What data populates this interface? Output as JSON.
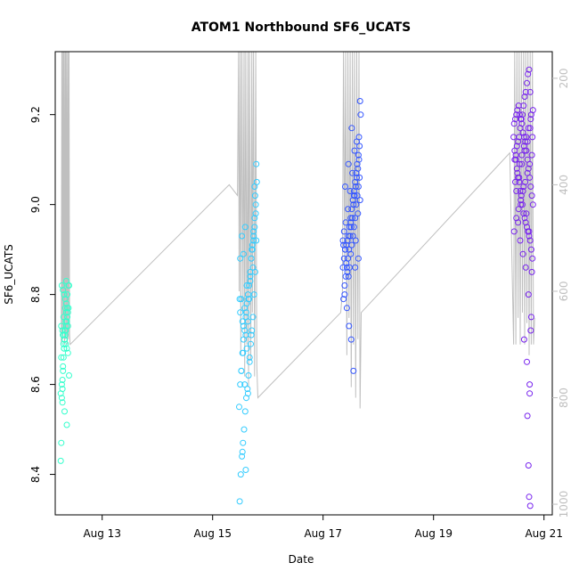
{
  "chart_data": {
    "type": "scatter",
    "title": "ATOM1 Northbound SF6_UCATS",
    "xlabel": "Date",
    "ylabel": "SF6_UCATS",
    "x_ticks": [
      "Aug 13",
      "Aug 15",
      "Aug 17",
      "Aug 19",
      "Aug 21"
    ],
    "xlim_days": [
      12.15,
      21.15
    ],
    "ylim": [
      8.31,
      9.34
    ],
    "y_ticks": [
      8.4,
      8.6,
      8.8,
      9.0,
      9.2
    ],
    "right_axis": {
      "label": "",
      "ticks": [
        200,
        400,
        600,
        800,
        1000
      ],
      "range": [
        1020,
        150
      ],
      "inverted": true,
      "color": "#bfbfbf"
    },
    "grid": false,
    "legend": "none",
    "colors": {
      "series1": "#33ffcc",
      "series2": "#33ccff",
      "series3": "#3355ff",
      "series4": "#7722ee",
      "pressure": "#bfbfbf"
    },
    "series": [
      {
        "x": [
          12.25,
          12.26,
          12.27,
          12.28,
          12.28,
          12.29,
          12.3,
          12.31,
          12.3,
          12.32,
          12.33,
          12.34,
          12.35,
          12.36,
          12.37,
          12.38,
          12.39,
          12.4,
          12.27,
          12.29,
          12.31,
          12.33,
          12.35,
          12.37,
          12.26,
          12.28,
          12.3,
          12.32,
          12.34,
          12.36,
          12.38,
          12.4,
          12.25,
          12.27,
          12.29,
          12.31,
          12.33,
          12.35,
          12.37,
          12.39,
          12.28,
          12.32,
          12.36,
          12.3,
          12.34,
          12.38,
          12.26,
          12.35,
          12.29,
          12.33
        ],
        "y": [
          8.43,
          8.47,
          8.57,
          8.59,
          8.61,
          8.64,
          8.66,
          8.68,
          8.69,
          8.7,
          8.71,
          8.72,
          8.73,
          8.74,
          8.75,
          8.76,
          8.77,
          8.82,
          8.82,
          8.81,
          8.8,
          8.79,
          8.78,
          8.77,
          8.73,
          8.72,
          8.71,
          8.7,
          8.69,
          8.68,
          8.67,
          8.62,
          8.58,
          8.6,
          8.63,
          8.68,
          8.72,
          8.76,
          8.8,
          8.82,
          8.56,
          8.54,
          8.51,
          8.75,
          8.74,
          8.73,
          8.66,
          8.83,
          8.71,
          8.77
        ]
      },
      {
        "x": [
          15.48,
          15.5,
          15.52,
          15.54,
          15.56,
          15.58,
          15.6,
          15.62,
          15.64,
          15.66,
          15.68,
          15.7,
          15.72,
          15.74,
          15.76,
          15.78,
          15.8,
          15.49,
          15.51,
          15.53,
          15.55,
          15.57,
          15.59,
          15.61,
          15.63,
          15.65,
          15.67,
          15.69,
          15.71,
          15.73,
          15.75,
          15.77,
          15.79,
          15.5,
          15.52,
          15.54,
          15.56,
          15.58,
          15.6,
          15.62,
          15.64,
          15.66,
          15.68,
          15.7,
          15.72,
          15.74,
          15.76,
          15.78,
          15.5,
          15.53,
          15.56,
          15.59,
          15.62,
          15.65,
          15.68,
          15.71,
          15.74,
          15.77,
          15.49,
          15.55,
          15.61,
          15.67,
          15.73,
          15.79,
          15.52,
          15.58,
          15.64,
          15.7,
          15.76,
          15.54,
          15.6
        ],
        "y": [
          8.55,
          8.6,
          8.63,
          8.67,
          8.7,
          8.72,
          8.75,
          8.78,
          8.8,
          8.82,
          8.85,
          8.88,
          8.9,
          8.92,
          8.95,
          8.98,
          9.05,
          8.34,
          8.4,
          8.44,
          8.47,
          8.5,
          8.54,
          8.57,
          8.59,
          8.62,
          8.66,
          8.69,
          8.72,
          8.75,
          8.8,
          8.85,
          8.92,
          8.76,
          8.79,
          8.74,
          8.73,
          8.77,
          8.71,
          8.68,
          8.74,
          8.79,
          8.83,
          8.88,
          8.91,
          8.93,
          8.97,
          9.0,
          8.88,
          8.93,
          8.89,
          8.95,
          8.82,
          8.79,
          8.84,
          8.9,
          8.94,
          9.02,
          8.79,
          8.67,
          8.76,
          8.65,
          8.86,
          9.09,
          8.63,
          8.6,
          8.58,
          8.71,
          9.04,
          8.45,
          8.41
        ]
      },
      {
        "x": [
          17.36,
          17.38,
          17.4,
          17.42,
          17.44,
          17.46,
          17.48,
          17.5,
          17.52,
          17.54,
          17.56,
          17.58,
          17.6,
          17.62,
          17.64,
          17.66,
          17.68,
          17.37,
          17.39,
          17.41,
          17.43,
          17.45,
          17.47,
          17.49,
          17.51,
          17.53,
          17.55,
          17.57,
          17.59,
          17.61,
          17.63,
          17.65,
          17.67,
          17.36,
          17.38,
          17.4,
          17.42,
          17.44,
          17.46,
          17.48,
          17.5,
          17.52,
          17.54,
          17.56,
          17.58,
          17.6,
          17.62,
          17.64,
          17.66,
          17.37,
          17.41,
          17.45,
          17.49,
          17.53,
          17.57,
          17.61,
          17.65,
          17.39,
          17.43,
          17.47,
          17.51,
          17.55,
          17.59,
          17.63,
          17.67,
          17.4,
          17.46,
          17.52,
          17.58,
          17.64,
          17.5,
          17.56
        ],
        "y": [
          8.86,
          8.88,
          8.9,
          8.91,
          8.92,
          8.93,
          8.95,
          8.97,
          8.99,
          9.01,
          9.03,
          9.05,
          9.07,
          9.09,
          9.11,
          9.13,
          9.2,
          8.79,
          8.82,
          8.84,
          8.86,
          8.88,
          8.9,
          8.93,
          8.95,
          8.97,
          9.0,
          9.02,
          9.04,
          9.06,
          9.08,
          9.1,
          9.23,
          8.92,
          8.94,
          8.9,
          8.87,
          8.85,
          8.84,
          8.86,
          8.89,
          8.91,
          8.93,
          8.95,
          8.97,
          9.0,
          9.02,
          9.04,
          9.06,
          8.91,
          8.96,
          8.99,
          9.03,
          9.07,
          9.12,
          9.14,
          9.15,
          8.8,
          8.77,
          8.73,
          8.7,
          8.63,
          8.92,
          8.98,
          9.01,
          9.04,
          9.09,
          9.17,
          8.86,
          8.88,
          8.96,
          9.02
        ]
      },
      {
        "x": [
          20.45,
          20.47,
          20.49,
          20.51,
          20.53,
          20.55,
          20.57,
          20.59,
          20.61,
          20.63,
          20.65,
          20.67,
          20.69,
          20.71,
          20.73,
          20.75,
          20.77,
          20.79,
          20.46,
          20.48,
          20.5,
          20.52,
          20.54,
          20.56,
          20.58,
          20.6,
          20.62,
          20.64,
          20.66,
          20.68,
          20.7,
          20.72,
          20.74,
          20.76,
          20.78,
          20.8,
          20.47,
          20.49,
          20.51,
          20.53,
          20.55,
          20.57,
          20.59,
          20.61,
          20.63,
          20.65,
          20.67,
          20.69,
          20.71,
          20.73,
          20.75,
          20.77,
          20.79,
          20.46,
          20.5,
          20.54,
          20.58,
          20.62,
          20.66,
          20.7,
          20.74,
          20.78,
          20.48,
          20.52,
          20.56,
          20.6,
          20.64,
          20.68,
          20.72,
          20.76,
          20.8,
          20.5,
          20.55,
          20.6,
          20.65,
          20.7,
          20.75,
          20.53,
          20.58,
          20.63,
          20.68,
          20.73,
          20.78,
          20.57,
          20.62,
          20.67,
          20.72,
          20.77,
          20.64,
          20.69,
          20.74,
          20.7,
          20.72,
          20.73,
          20.75,
          20.74,
          20.76
        ],
        "y": [
          9.15,
          9.12,
          9.1,
          9.08,
          9.06,
          9.05,
          9.03,
          9.02,
          9.0,
          8.98,
          8.97,
          8.96,
          8.95,
          8.94,
          8.93,
          8.92,
          8.9,
          8.88,
          9.18,
          9.19,
          9.2,
          9.21,
          9.22,
          9.2,
          9.19,
          9.18,
          9.16,
          9.15,
          9.14,
          9.12,
          9.1,
          9.08,
          9.06,
          9.04,
          9.02,
          9.0,
          9.1,
          9.11,
          9.13,
          9.14,
          9.15,
          9.17,
          9.19,
          9.2,
          9.22,
          9.24,
          9.25,
          9.27,
          9.29,
          9.3,
          9.25,
          9.2,
          9.15,
          8.94,
          8.97,
          8.99,
          9.01,
          9.03,
          9.05,
          9.07,
          9.09,
          9.11,
          9.05,
          9.07,
          9.09,
          9.11,
          9.13,
          9.15,
          9.17,
          9.19,
          9.21,
          9.03,
          9.06,
          9.09,
          9.12,
          9.14,
          9.17,
          8.96,
          9.0,
          9.04,
          8.98,
          8.94,
          8.85,
          8.92,
          8.89,
          8.86,
          8.8,
          8.75,
          8.7,
          8.65,
          8.58,
          8.53,
          8.42,
          8.35,
          8.33,
          8.6,
          8.72
        ]
      }
    ],
    "pressure_trace": {
      "x": [
        12.26,
        12.27,
        12.27,
        12.28,
        12.29,
        12.3,
        12.3,
        12.31,
        12.32,
        12.33,
        12.34,
        12.34,
        12.35,
        12.36,
        12.37,
        12.38,
        12.39,
        12.4,
        12.41,
        12.42,
        15.3,
        15.45,
        15.47,
        15.48,
        15.5,
        15.51,
        15.53,
        15.55,
        15.57,
        15.58,
        15.6,
        15.62,
        15.64,
        15.65,
        15.67,
        15.69,
        15.71,
        15.72,
        15.74,
        15.76,
        15.78,
        15.8,
        15.82,
        17.32,
        17.35,
        17.37,
        17.39,
        17.41,
        17.43,
        17.45,
        17.47,
        17.49,
        17.51,
        17.53,
        17.55,
        17.57,
        17.59,
        17.61,
        17.63,
        17.65,
        17.67,
        17.69,
        20.38,
        20.45,
        20.47,
        20.49,
        20.51,
        20.53,
        20.55,
        20.57,
        20.59,
        20.61,
        20.63,
        20.65,
        20.67,
        20.69,
        20.71,
        20.73,
        20.75,
        20.77,
        20.79,
        20.81,
        20.83
      ],
      "p": [
        700,
        150,
        680,
        150,
        690,
        150,
        670,
        150,
        700,
        150,
        690,
        150,
        680,
        150,
        700,
        150,
        690,
        150,
        680,
        700,
        400,
        420,
        150,
        600,
        150,
        720,
        150,
        640,
        150,
        760,
        150,
        700,
        150,
        780,
        150,
        730,
        150,
        640,
        150,
        760,
        150,
        740,
        800,
        640,
        600,
        150,
        550,
        150,
        720,
        150,
        650,
        150,
        780,
        150,
        700,
        150,
        800,
        150,
        690,
        150,
        820,
        640,
        340,
        700,
        150,
        700,
        150,
        650,
        150,
        700,
        150,
        640,
        150,
        700,
        150,
        660,
        150,
        720,
        150,
        700,
        150,
        700,
        650
      ]
    }
  }
}
